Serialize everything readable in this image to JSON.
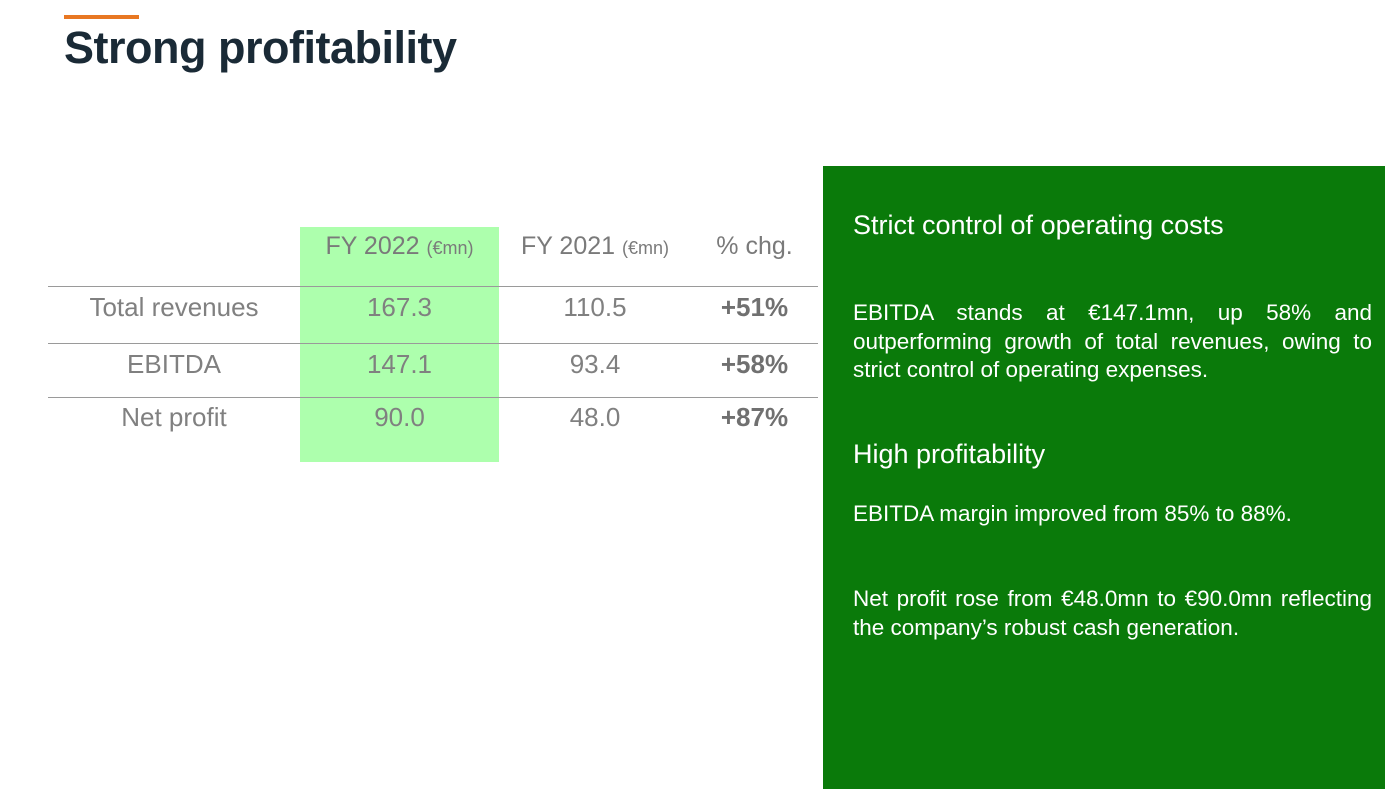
{
  "title": "Strong profitability",
  "table": {
    "headers": [
      {
        "label": "FY 2022",
        "unit": "(€mn)"
      },
      {
        "label": "FY 2021",
        "unit": "(€mn)"
      },
      {
        "label": "% chg.",
        "unit": ""
      }
    ],
    "rows": [
      {
        "label": "Total revenues",
        "fy2022": "167.3",
        "fy2021": "110.5",
        "chg": "+51%"
      },
      {
        "label": "EBITDA",
        "fy2022": "147.1",
        "fy2021": "93.4",
        "chg": "+58%"
      },
      {
        "label": "Net profit",
        "fy2022": "90.0",
        "fy2021": "48.0",
        "chg": "+87%"
      }
    ]
  },
  "panel": {
    "heading1": "Strict control of operating costs",
    "para1": "EBITDA stands at €147.1mn, up 58% and outperforming growth of total revenues, owing to strict control of operating expenses.",
    "heading2": "High profitability",
    "para2": "EBITDA margin improved from 85% to 88%.",
    "para3": "Net profit rose from €48.0mn to €90.0mn reflecting the company’s robust cash generation."
  },
  "colors": {
    "accent": "#e87722",
    "panel": "#0a7a0a",
    "highlight": "#adffad"
  }
}
